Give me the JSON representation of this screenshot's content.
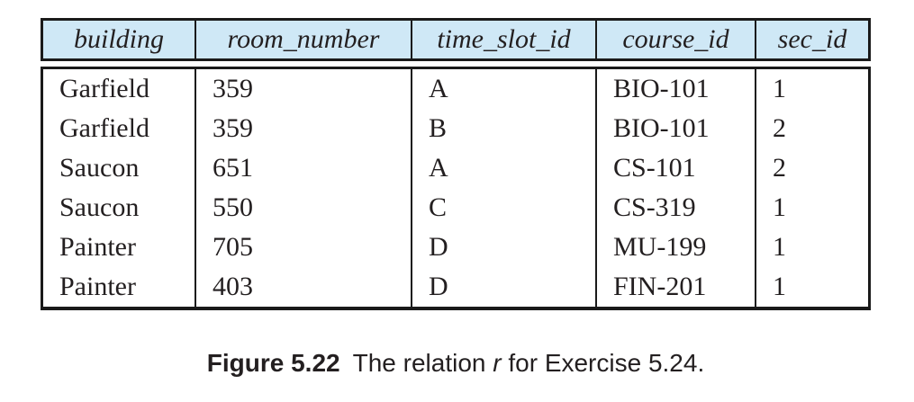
{
  "table": {
    "columns": [
      "building",
      "room_number",
      "time_slot_id",
      "course_id",
      "sec_id"
    ],
    "rows": [
      [
        "Garfield",
        "359",
        "A",
        "BIO-101",
        "1"
      ],
      [
        "Garfield",
        "359",
        "B",
        "BIO-101",
        "2"
      ],
      [
        "Saucon",
        "651",
        "A",
        "CS-101",
        "2"
      ],
      [
        "Saucon",
        "550",
        "C",
        "CS-319",
        "1"
      ],
      [
        "Painter",
        "705",
        "D",
        "MU-199",
        "1"
      ],
      [
        "Painter",
        "403",
        "D",
        "FIN-201",
        "1"
      ]
    ]
  },
  "caption": {
    "label": "Figure 5.22",
    "text_before": "The relation ",
    "italic_term": "r",
    "text_after": " for Exercise 5.24."
  },
  "colors": {
    "header_bg": "#cfe8f6",
    "border": "#1a1a1a",
    "text": "#231f20"
  }
}
